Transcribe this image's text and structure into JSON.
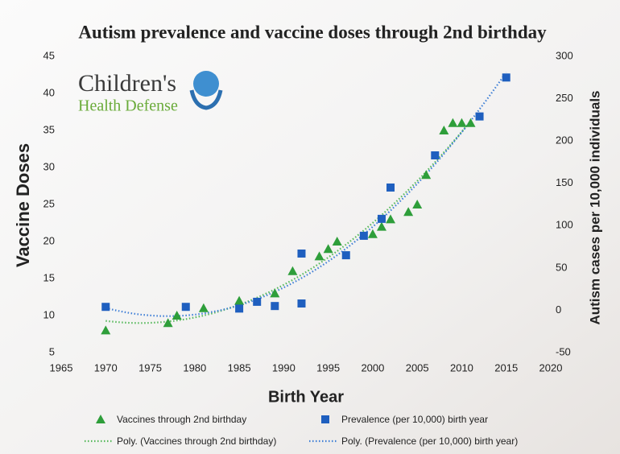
{
  "chart_data": {
    "type": "scatter",
    "title": "Autism prevalence and vaccine doses through 2nd birthday",
    "logo": {
      "line1": "Children's",
      "line2": "Health Defense"
    },
    "x_label": "Birth Year",
    "y_label": "Vaccine Doses",
    "y2_label": "Autism cases per 10,000 individuals",
    "xlim": [
      1965,
      2020
    ],
    "xticks": [
      1965,
      1970,
      1975,
      1980,
      1985,
      1990,
      1995,
      2000,
      2005,
      2010,
      2015,
      2020
    ],
    "ylim": [
      5,
      45
    ],
    "yticks": [
      5,
      10,
      15,
      20,
      25,
      30,
      35,
      40,
      45
    ],
    "y2lim": [
      -50,
      300
    ],
    "y2ticks": [
      -50,
      0,
      50,
      100,
      150,
      200,
      250,
      300
    ],
    "series": [
      {
        "name": "Vaccines through 2nd birthday",
        "color": "#2e9e3a",
        "marker": "triangle",
        "axis": "y",
        "x": [
          1970,
          1977,
          1978,
          1981,
          1985,
          1989,
          1991,
          1994,
          1995,
          1996,
          2000,
          2001,
          2002,
          2004,
          2005,
          2006,
          2008,
          2009,
          2010,
          2011
        ],
        "values": [
          8,
          9,
          10,
          11,
          12,
          13,
          16,
          18,
          19,
          20,
          21,
          22,
          23,
          24,
          25,
          29,
          35,
          36,
          36,
          36
        ]
      },
      {
        "name": "Prevalence (per 10,000) birth year",
        "color": "#1f5fbf",
        "marker": "square",
        "axis": "y2",
        "x": [
          1970,
          1979,
          1985,
          1987,
          1989,
          1992,
          1992,
          1997,
          1999,
          2001,
          2002,
          2007,
          2012,
          2015
        ],
        "values": [
          4,
          4,
          2,
          10,
          5,
          67,
          8,
          65,
          88,
          108,
          145,
          183,
          229,
          275
        ]
      }
    ],
    "trendlines": [
      {
        "name": "Poly. (Vaccines through 2nd birthday)",
        "series": 0,
        "color": "#55b85a",
        "order": 2
      },
      {
        "name": "Poly. (Prevalence (per 10,000) birth year)",
        "series": 1,
        "color": "#3f7fd6",
        "order": 2
      }
    ]
  }
}
